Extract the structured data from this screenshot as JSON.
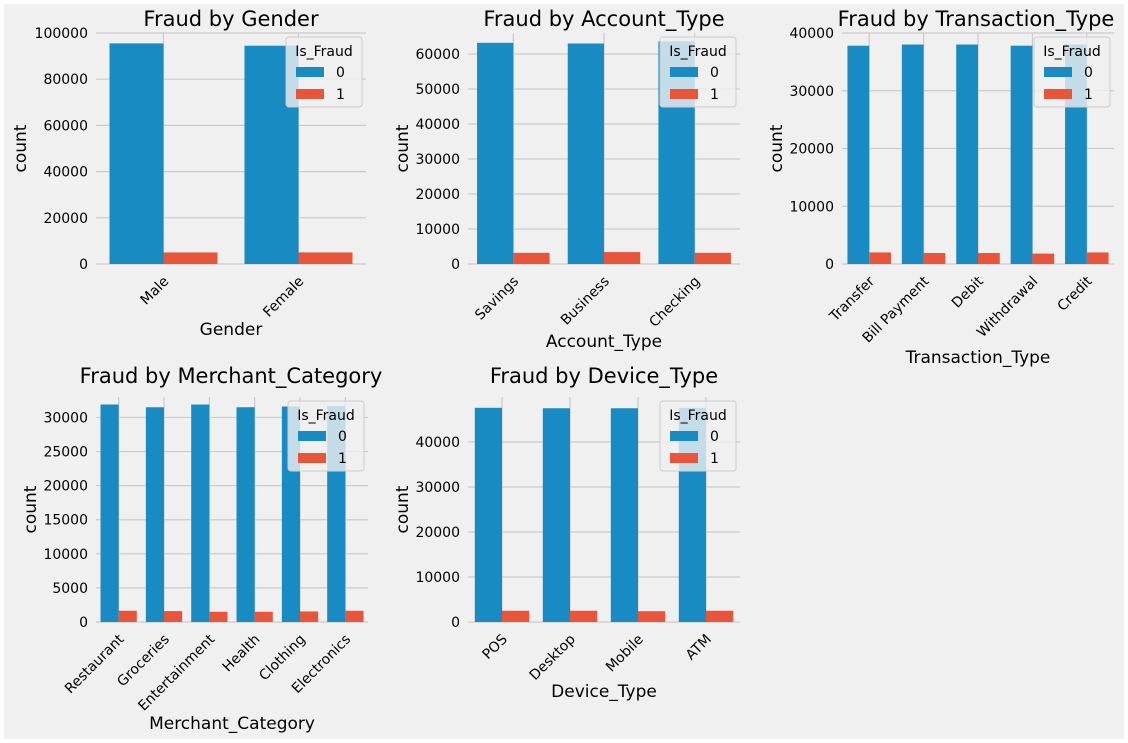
{
  "colors": {
    "background": "#f0f0f0",
    "series_0": "#188bc2",
    "series_1": "#e8553a",
    "grid": "#cbcbcb"
  },
  "chart_data": [
    {
      "type": "bar",
      "title": "Fraud by Gender",
      "xlabel": "Gender",
      "ylabel": "count",
      "categories": [
        "Male",
        "Female"
      ],
      "ylim": [
        0,
        100000
      ],
      "yticks": [
        0,
        20000,
        40000,
        60000,
        80000,
        100000
      ],
      "legend": {
        "title": "Is_Fraud",
        "placement": "top-right"
      },
      "series": [
        {
          "name": "0",
          "values": [
            95500,
            94500
          ]
        },
        {
          "name": "1",
          "values": [
            5000,
            5000
          ]
        }
      ]
    },
    {
      "type": "bar",
      "title": "Fraud by Account_Type",
      "xlabel": "Account_Type",
      "ylabel": "count",
      "categories": [
        "Savings",
        "Business",
        "Checking"
      ],
      "ylim": [
        0,
        66000
      ],
      "yticks": [
        0,
        10000,
        20000,
        30000,
        40000,
        50000,
        60000
      ],
      "legend": {
        "title": "Is_Fraud",
        "placement": "top-right"
      },
      "series": [
        {
          "name": "0",
          "values": [
            63200,
            63000,
            63600
          ]
        },
        {
          "name": "1",
          "values": [
            3200,
            3400,
            3200
          ]
        }
      ]
    },
    {
      "type": "bar",
      "title": "Fraud by Transaction_Type",
      "xlabel": "Transaction_Type",
      "ylabel": "count",
      "categories": [
        "Transfer",
        "Bill Payment",
        "Debit",
        "Withdrawal",
        "Credit"
      ],
      "ylim": [
        0,
        40000
      ],
      "yticks": [
        0,
        10000,
        20000,
        30000,
        40000
      ],
      "legend": {
        "title": "Is_Fraud",
        "placement": "top-right"
      },
      "series": [
        {
          "name": "0",
          "values": [
            37800,
            38000,
            38000,
            37800,
            38000
          ]
        },
        {
          "name": "1",
          "values": [
            2000,
            1900,
            1900,
            1800,
            2000
          ]
        }
      ]
    },
    {
      "type": "bar",
      "title": "Fraud by Merchant_Category",
      "xlabel": "Merchant_Category",
      "ylabel": "count",
      "categories": [
        "Restaurant",
        "Groceries",
        "Entertainment",
        "Health",
        "Clothing",
        "Electronics"
      ],
      "ylim": [
        0,
        33000
      ],
      "yticks": [
        0,
        5000,
        10000,
        15000,
        20000,
        25000,
        30000
      ],
      "legend": {
        "title": "Is_Fraud",
        "placement": "top-right"
      },
      "series": [
        {
          "name": "0",
          "values": [
            31900,
            31500,
            31900,
            31500,
            31600,
            31700
          ]
        },
        {
          "name": "1",
          "values": [
            1650,
            1600,
            1500,
            1500,
            1550,
            1650
          ]
        }
      ]
    },
    {
      "type": "bar",
      "title": "Fraud by Device_Type",
      "xlabel": "Device_Type",
      "ylabel": "count",
      "categories": [
        "POS",
        "Desktop",
        "Mobile",
        "ATM"
      ],
      "ylim": [
        0,
        50000
      ],
      "yticks": [
        0,
        10000,
        20000,
        30000,
        40000
      ],
      "legend": {
        "title": "Is_Fraud",
        "placement": "top-right"
      },
      "series": [
        {
          "name": "0",
          "values": [
            47600,
            47500,
            47500,
            47600
          ]
        },
        {
          "name": "1",
          "values": [
            2500,
            2500,
            2400,
            2500
          ]
        }
      ]
    }
  ]
}
